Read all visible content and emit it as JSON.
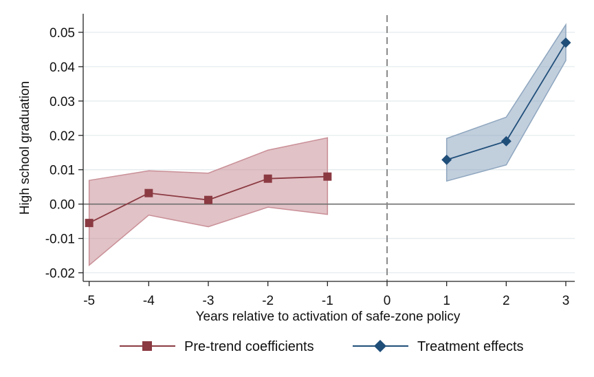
{
  "chart_data": {
    "type": "line",
    "title": "",
    "xlabel": "Years relative to activation of safe-zone policy",
    "ylabel": "High school graduation",
    "xlim": [
      -5.1,
      3.15
    ],
    "ylim": [
      -0.0225,
      0.055
    ],
    "x_ticks": [
      -5,
      -4,
      -3,
      -2,
      -1,
      0,
      1,
      2,
      3
    ],
    "x_tick_labels": [
      "-5",
      "-4",
      "-3",
      "-2",
      "-1",
      "0",
      "1",
      "2",
      "3"
    ],
    "y_ticks": [
      0.05,
      0.04,
      0.03,
      0.02,
      0.01,
      0.0,
      -0.01,
      -0.02
    ],
    "y_tick_labels": [
      "0.05",
      "0.04",
      "0.03",
      "0.02",
      "0.01",
      "0.00",
      "-0.01",
      "-0.02"
    ],
    "grid": "horizontal",
    "zero_line": 0.0,
    "event_line_x": 0,
    "legend_position": "bottom",
    "series": [
      {
        "name": "Pre-trend coefficients",
        "marker": "square",
        "color": "#8b3a42",
        "band_color": "#c98f97",
        "x": [
          -5,
          -4,
          -3,
          -2,
          -1
        ],
        "y": [
          -0.0055,
          0.0032,
          0.0012,
          0.0074,
          0.008
        ],
        "ci_lower": [
          -0.0178,
          -0.0032,
          -0.0066,
          -0.0009,
          -0.003
        ],
        "ci_upper": [
          0.0069,
          0.0097,
          0.009,
          0.0157,
          0.0193
        ]
      },
      {
        "name": "Treatment effects",
        "marker": "diamond",
        "color": "#1f4e79",
        "band_color": "#8ea6bf",
        "x": [
          1,
          2,
          3
        ],
        "y": [
          0.0129,
          0.0183,
          0.047
        ],
        "ci_lower": [
          0.0067,
          0.0114,
          0.0418
        ],
        "ci_upper": [
          0.0191,
          0.0253,
          0.0522
        ]
      }
    ]
  }
}
